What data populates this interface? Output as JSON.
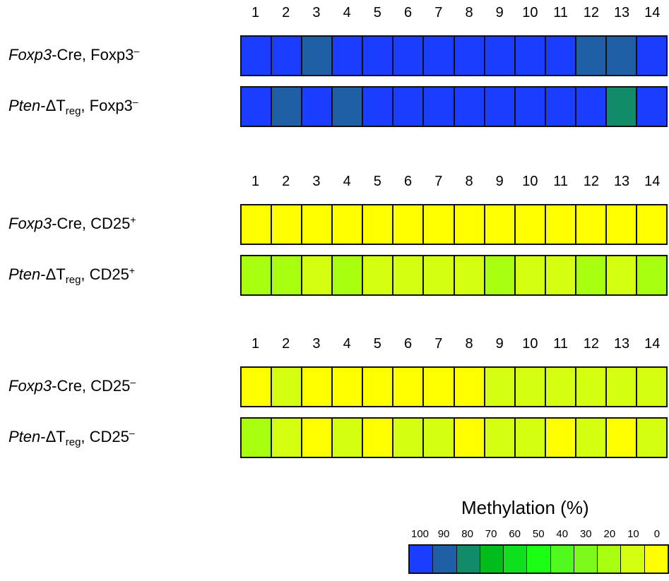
{
  "chart_data": [
    {
      "type": "heatmap",
      "columns": [
        "1",
        "2",
        "3",
        "4",
        "5",
        "6",
        "7",
        "8",
        "9",
        "10",
        "11",
        "12",
        "13",
        "14"
      ],
      "rows": [
        {
          "label_italic": "Foxp3",
          "label_rest": "-Cre, Foxp3",
          "label_sup": "–",
          "values": [
            100,
            100,
            90,
            100,
            100,
            100,
            100,
            100,
            100,
            100,
            100,
            90,
            90,
            100
          ]
        },
        {
          "label_italic": "Pten",
          "label_rest": "-ΔT",
          "label_sub": "reg",
          "label_tail": ", Foxp3",
          "label_sup": "–",
          "values": [
            100,
            90,
            100,
            90,
            100,
            100,
            100,
            100,
            100,
            100,
            100,
            100,
            80,
            100
          ]
        }
      ]
    },
    {
      "type": "heatmap",
      "columns": [
        "1",
        "2",
        "3",
        "4",
        "5",
        "6",
        "7",
        "8",
        "9",
        "10",
        "11",
        "12",
        "13",
        "14"
      ],
      "rows": [
        {
          "label_italic": "Foxp3",
          "label_rest": "-Cre, CD25",
          "label_sup": "+",
          "values": [
            0,
            0,
            0,
            0,
            0,
            0,
            0,
            0,
            0,
            0,
            0,
            0,
            0,
            0
          ]
        },
        {
          "label_italic": "Pten",
          "label_rest": "-ΔT",
          "label_sub": "reg",
          "label_tail": ", CD25",
          "label_sup": "+",
          "values": [
            20,
            20,
            10,
            20,
            10,
            10,
            10,
            10,
            20,
            10,
            10,
            20,
            10,
            20
          ]
        }
      ]
    },
    {
      "type": "heatmap",
      "columns": [
        "1",
        "2",
        "3",
        "4",
        "5",
        "6",
        "7",
        "8",
        "9",
        "10",
        "11",
        "12",
        "13",
        "14"
      ],
      "rows": [
        {
          "label_italic": "Foxp3",
          "label_rest": "-Cre, CD25",
          "label_sup": "–",
          "values": [
            0,
            10,
            0,
            0,
            0,
            0,
            0,
            0,
            10,
            10,
            10,
            10,
            10,
            10
          ]
        },
        {
          "label_italic": "Pten",
          "label_rest": "-ΔT",
          "label_sub": "reg",
          "label_tail": ", CD25",
          "label_sup": "–",
          "values": [
            20,
            10,
            0,
            10,
            0,
            10,
            10,
            0,
            10,
            10,
            0,
            10,
            0,
            10
          ]
        }
      ]
    }
  ],
  "legend": {
    "title": "Methylation (%)",
    "ticks": [
      "100",
      "90",
      "80",
      "70",
      "60",
      "50",
      "40",
      "30",
      "20",
      "10",
      "0"
    ],
    "colors": [
      "#1a3dff",
      "#1f5fa5",
      "#128c68",
      "#00bd1b",
      "#0ee01e",
      "#1aff14",
      "#50fa1e",
      "#7dfa1b",
      "#a8ff10",
      "#d4ff10",
      "#ffff00"
    ]
  }
}
